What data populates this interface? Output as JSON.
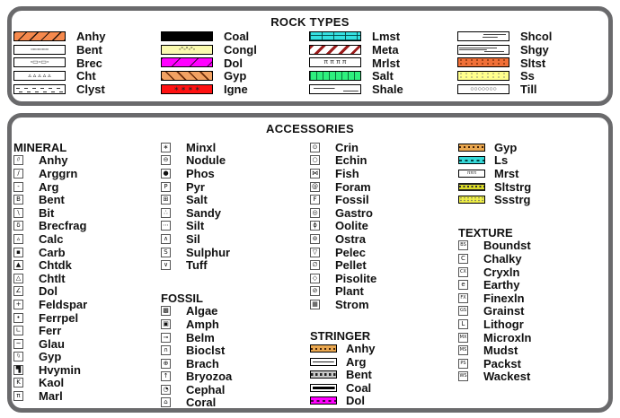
{
  "panel_border_color": "#6A6A6C",
  "rock_panel": {
    "title": "ROCK TYPES",
    "columns": [
      {
        "groups": [
          {
            "items": [
              {
                "label": "Anhy",
                "swatch": "anhy",
                "fill": "#F5894D"
              },
              {
                "label": "Bent",
                "swatch": "bent",
                "fill": "#FFFFFF",
                "overlay": "▫▫▫▫▫▫▫▫"
              },
              {
                "label": "Brec",
                "swatch": "brec",
                "fill": "#FFFFFF",
                "overlay": "◦▭◦▭◦"
              },
              {
                "label": "Cht",
                "swatch": "cht",
                "fill": "#FFFFFF",
                "overlay": "▵ ▵ ▵ ▵ ▵"
              },
              {
                "label": "Clyst",
                "swatch": "clyst",
                "fill": "#FFFFFF"
              }
            ]
          }
        ]
      },
      {
        "groups": [
          {
            "items": [
              {
                "label": "Coal",
                "swatch": "coal",
                "fill": "#000000"
              },
              {
                "label": "Congl",
                "swatch": "congl",
                "fill": "#FAFAAF",
                "overlay": "◦°◦°◦°◦"
              },
              {
                "label": "Dol",
                "swatch": "dol",
                "fill": "#FF00FF"
              },
              {
                "label": "Gyp",
                "swatch": "gyp",
                "fill": "#F2A263"
              },
              {
                "label": "Igne",
                "swatch": "igne",
                "fill": "#FF1212",
                "overlay": "∗  ∗  ∗  ∗"
              }
            ]
          }
        ]
      },
      {
        "groups": [
          {
            "items": [
              {
                "label": "Lmst",
                "swatch": "lmst",
                "fill": "#35E1E1"
              },
              {
                "label": "Meta",
                "swatch": "meta",
                "fill": "#FFFFFF"
              },
              {
                "label": "Mrlst",
                "swatch": "mrlst",
                "fill": "#FFFFFF",
                "overlay": "π π π π"
              },
              {
                "label": "Salt",
                "swatch": "salt",
                "fill": "#2EF07E"
              },
              {
                "label": "Shale",
                "swatch": "shale",
                "fill": "#FFFFFF"
              }
            ]
          }
        ]
      },
      {
        "groups": [
          {
            "items": [
              {
                "label": "Shcol",
                "swatch": "shcol",
                "fill": "#FFFFFF"
              },
              {
                "label": "Shgy",
                "swatch": "shgy",
                "fill": "#FFFFFF"
              },
              {
                "label": "Sltst",
                "swatch": "sltst",
                "fill": "#F07038"
              },
              {
                "label": "Ss",
                "swatch": "ss",
                "fill": "#FFFF8C"
              },
              {
                "label": "Till",
                "swatch": "till",
                "fill": "#FFFFFF",
                "overlay": "○○○○○○○"
              }
            ]
          }
        ]
      }
    ]
  },
  "acc_panel": {
    "title": "ACCESSORIES",
    "columns": [
      {
        "groups": [
          {
            "header": "MINERAL",
            "items": [
              {
                "label": "Anhy",
                "glyph": "//"
              },
              {
                "label": "Arggrn",
                "glyph": "/"
              },
              {
                "label": "Arg",
                "glyph": "-"
              },
              {
                "label": "Bent",
                "glyph": "B"
              },
              {
                "label": "Bit",
                "glyph": "\\"
              },
              {
                "label": "Brecfrag",
                "glyph": "δ"
              },
              {
                "label": "Calc",
                "glyph": "▵"
              },
              {
                "label": "Carb",
                "glyph": "▪"
              },
              {
                "label": "Chtdk",
                "glyph": "▲"
              },
              {
                "label": "Chtlt",
                "glyph": "△"
              },
              {
                "label": "Dol",
                "glyph": "∠"
              },
              {
                "label": "Feldspar",
                "glyph": "+"
              },
              {
                "label": "Ferrpel",
                "glyph": "•"
              },
              {
                "label": "Ferr",
                "glyph": "∟"
              },
              {
                "label": "Glau",
                "glyph": "~"
              },
              {
                "label": "Gyp",
                "glyph": "\\\\"
              },
              {
                "label": "Hvymin",
                "glyph": "▜"
              },
              {
                "label": "Kaol",
                "glyph": "K"
              },
              {
                "label": "Marl",
                "glyph": "π"
              }
            ]
          }
        ]
      },
      {
        "groups": [
          {
            "items": [
              {
                "label": "Minxl",
                "glyph": "∗"
              },
              {
                "label": "Nodule",
                "glyph": "⊖"
              },
              {
                "label": "Phos",
                "glyph": "●"
              },
              {
                "label": "Pyr",
                "glyph": "P"
              },
              {
                "label": "Salt",
                "glyph": "⊞"
              },
              {
                "label": "Sandy",
                "glyph": "∴"
              },
              {
                "label": "Silt",
                "glyph": "⋯"
              },
              {
                "label": "Sil",
                "glyph": "∧"
              },
              {
                "label": "Sulphur",
                "glyph": "S"
              },
              {
                "label": "Tuff",
                "glyph": "∨"
              }
            ]
          },
          {
            "header": "FOSSIL",
            "items": [
              {
                "label": "Algae",
                "glyph": "▩"
              },
              {
                "label": "Amph",
                "glyph": "▣"
              },
              {
                "label": "Belm",
                "glyph": "⊸"
              },
              {
                "label": "Bioclst",
                "glyph": "∩"
              },
              {
                "label": "Brach",
                "glyph": "⊕"
              },
              {
                "label": "Bryozoa",
                "glyph": "↑"
              },
              {
                "label": "Cephal",
                "glyph": "◔"
              },
              {
                "label": "Coral",
                "glyph": "⌂"
              }
            ]
          }
        ]
      },
      {
        "groups": [
          {
            "items": [
              {
                "label": "Crin",
                "glyph": "⊙"
              },
              {
                "label": "Echin",
                "glyph": "○"
              },
              {
                "label": "Fish",
                "glyph": "⋈"
              },
              {
                "label": "Foram",
                "glyph": "@"
              },
              {
                "label": "Fossil",
                "glyph": "F"
              },
              {
                "label": "Gastro",
                "glyph": "◎"
              },
              {
                "label": "Oolite",
                "glyph": "ϕ"
              },
              {
                "label": "Ostra",
                "glyph": "⊚"
              },
              {
                "label": "Pelec",
                "glyph": "▽"
              },
              {
                "label": "Pellet",
                "glyph": "∅"
              },
              {
                "label": "Pisolite",
                "glyph": "◇"
              },
              {
                "label": "Plant",
                "glyph": "⊘"
              },
              {
                "label": "Strom",
                "glyph": "▦"
              }
            ]
          },
          {
            "header": "STRINGER",
            "items": [
              {
                "label": "Anhy",
                "bar": "anhystr",
                "fill": "#E9A74F"
              },
              {
                "label": "Arg",
                "bar": "argstr",
                "fill": "#FFFFFF"
              },
              {
                "label": "Bent",
                "bar": "bentstr",
                "fill": "#C9C9C9"
              },
              {
                "label": "Coal",
                "bar": "coalstr",
                "fill": "#FFFFFF"
              },
              {
                "label": "Dol",
                "bar": "dolstr",
                "fill": "#FF00FF"
              }
            ]
          }
        ]
      },
      {
        "groups": [
          {
            "items": [
              {
                "label": "Gyp",
                "bar": "gypbar",
                "fill": "#E9A74F"
              },
              {
                "label": "Ls",
                "bar": "ls",
                "fill": "#35D8D8"
              },
              {
                "label": "Mrst",
                "bar": "mrstbar",
                "fill": "#FFFFFF",
                "overlay": "πππ"
              },
              {
                "label": "Sltstrg",
                "bar": "sltstrg",
                "fill": "#DCDC28"
              },
              {
                "label": "Ssstrg",
                "bar": "ssstrg",
                "fill": "#F0F046"
              }
            ]
          },
          {
            "header": "TEXTURE",
            "items": [
              {
                "label": "Boundst",
                "glyph": "BS"
              },
              {
                "label": "Chalky",
                "glyph": "C"
              },
              {
                "label": "Cryxln",
                "glyph": "CX"
              },
              {
                "label": "Earthy",
                "glyph": "e"
              },
              {
                "label": "Finexln",
                "glyph": "FX"
              },
              {
                "label": "Grainst",
                "glyph": "GS"
              },
              {
                "label": "Lithogr",
                "glyph": "L"
              },
              {
                "label": "Microxln",
                "glyph": "MX"
              },
              {
                "label": "Mudst",
                "glyph": "MS"
              },
              {
                "label": "Packst",
                "glyph": "PS"
              },
              {
                "label": "Wackest",
                "glyph": "WS"
              }
            ]
          }
        ]
      }
    ]
  }
}
